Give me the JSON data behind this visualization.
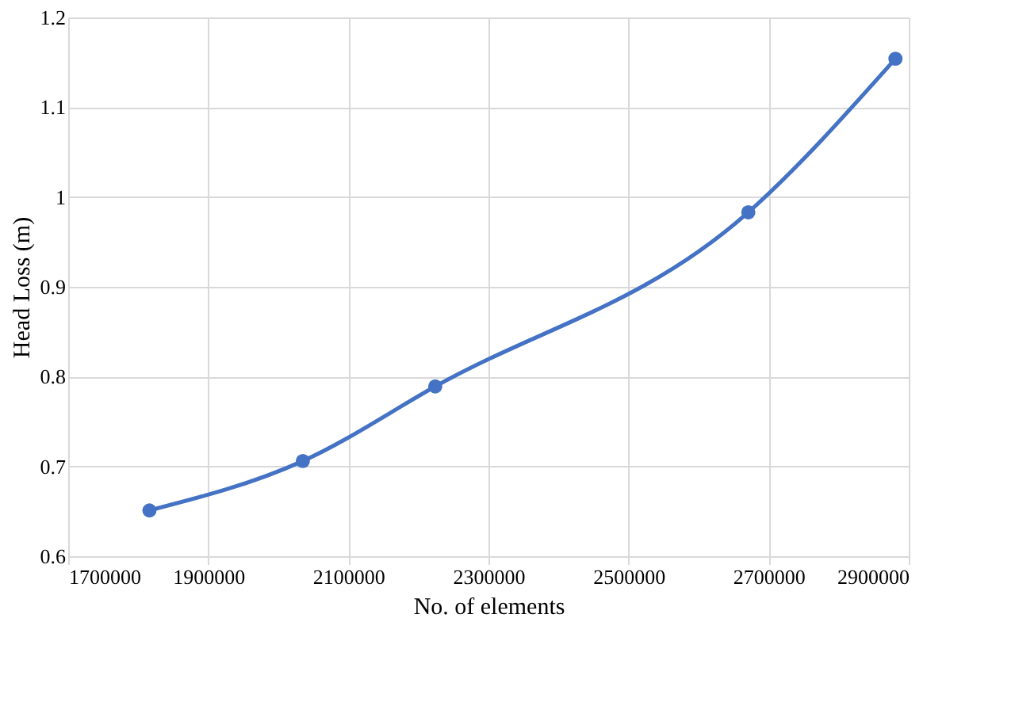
{
  "chart_data": {
    "type": "line",
    "xlabel": "No. of elements",
    "ylabel": "Head Loss (m)",
    "x": [
      1816000,
      2035000,
      2224000,
      2671000,
      2881000
    ],
    "series": [
      {
        "color": "#4472c4",
        "values": [
          0.651,
          0.706,
          0.789,
          0.983,
          1.154
        ]
      }
    ],
    "xlim": [
      1700000,
      2900000
    ],
    "xticks": [
      1700000,
      1900000,
      2100000,
      2300000,
      2500000,
      2700000,
      2900000
    ],
    "ylim": [
      0.6,
      1.2
    ],
    "yticks": [
      0.6,
      0.7,
      0.8,
      0.9,
      1,
      1.1,
      1.2
    ],
    "grid": true,
    "marker": "circle",
    "line_style": "solid"
  }
}
